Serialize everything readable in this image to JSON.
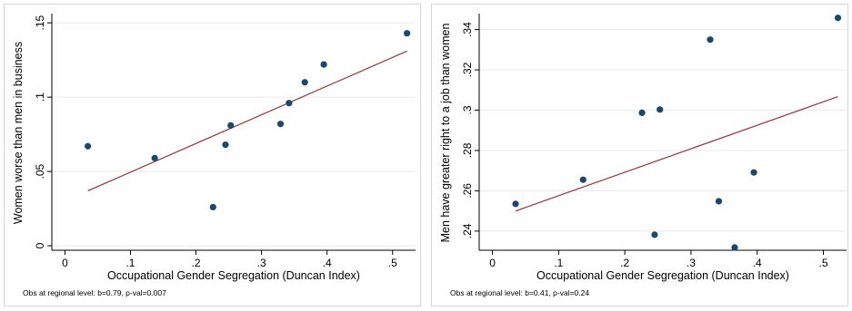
{
  "chart_data": [
    {
      "type": "scatter",
      "xlabel": "Occupational Gender Segregation (Duncan Index)",
      "ylabel": "Women worse than men in business",
      "note": "Obs at regional level: b=0.79, p-val=0.007",
      "xlim": [
        -0.02,
        0.535
      ],
      "ylim": [
        -0.003,
        0.155
      ],
      "xticks": [
        0,
        0.1,
        0.2,
        0.3,
        0.4,
        0.5
      ],
      "xtick_labels": [
        "0",
        ".1",
        ".2",
        ".3",
        ".4",
        ".5"
      ],
      "yticks": [
        0,
        0.05,
        0.1,
        0.15
      ],
      "ytick_labels": [
        "0",
        ".05",
        ".1",
        ".15"
      ],
      "grid": true,
      "points": [
        {
          "x": 0.035,
          "y": 0.067
        },
        {
          "x": 0.137,
          "y": 0.059
        },
        {
          "x": 0.226,
          "y": 0.026
        },
        {
          "x": 0.245,
          "y": 0.068
        },
        {
          "x": 0.253,
          "y": 0.081
        },
        {
          "x": 0.329,
          "y": 0.082
        },
        {
          "x": 0.342,
          "y": 0.096
        },
        {
          "x": 0.366,
          "y": 0.11
        },
        {
          "x": 0.395,
          "y": 0.122
        },
        {
          "x": 0.522,
          "y": 0.143
        }
      ],
      "fit_line": {
        "x": [
          0.035,
          0.522
        ],
        "y": [
          0.037,
          0.131
        ]
      },
      "colors": {
        "points": "#1a476f",
        "fit": "#90353b",
        "grid": "#eaeaea"
      }
    },
    {
      "type": "scatter",
      "xlabel": "Occupational Gender Segregation (Duncan Index)",
      "ylabel": "Men have greater right to a job than women",
      "note": "Obs at regional level: b=0.41, p-val=0.24",
      "xlim": [
        -0.02,
        0.535
      ],
      "ylim": [
        0.2305,
        0.347
      ],
      "xticks": [
        0,
        0.1,
        0.2,
        0.3,
        0.4,
        0.5
      ],
      "xtick_labels": [
        "0",
        ".1",
        ".2",
        ".3",
        ".4",
        ".5"
      ],
      "yticks": [
        0.24,
        0.26,
        0.28,
        0.3,
        0.32,
        0.34
      ],
      "ytick_labels": [
        ".24",
        ".26",
        ".28",
        ".3",
        ".32",
        ".34"
      ],
      "grid": true,
      "points": [
        {
          "x": 0.035,
          "y": 0.2535
        },
        {
          "x": 0.137,
          "y": 0.2655
        },
        {
          "x": 0.226,
          "y": 0.2987
        },
        {
          "x": 0.245,
          "y": 0.2382
        },
        {
          "x": 0.253,
          "y": 0.3003
        },
        {
          "x": 0.329,
          "y": 0.335
        },
        {
          "x": 0.342,
          "y": 0.2548
        },
        {
          "x": 0.366,
          "y": 0.2319
        },
        {
          "x": 0.395,
          "y": 0.2691
        },
        {
          "x": 0.522,
          "y": 0.3458
        }
      ],
      "fit_line": {
        "x": [
          0.035,
          0.522
        ],
        "y": [
          0.25,
          0.3067
        ]
      },
      "colors": {
        "points": "#1a476f",
        "fit": "#90353b",
        "grid": "#eaeaea"
      }
    }
  ]
}
